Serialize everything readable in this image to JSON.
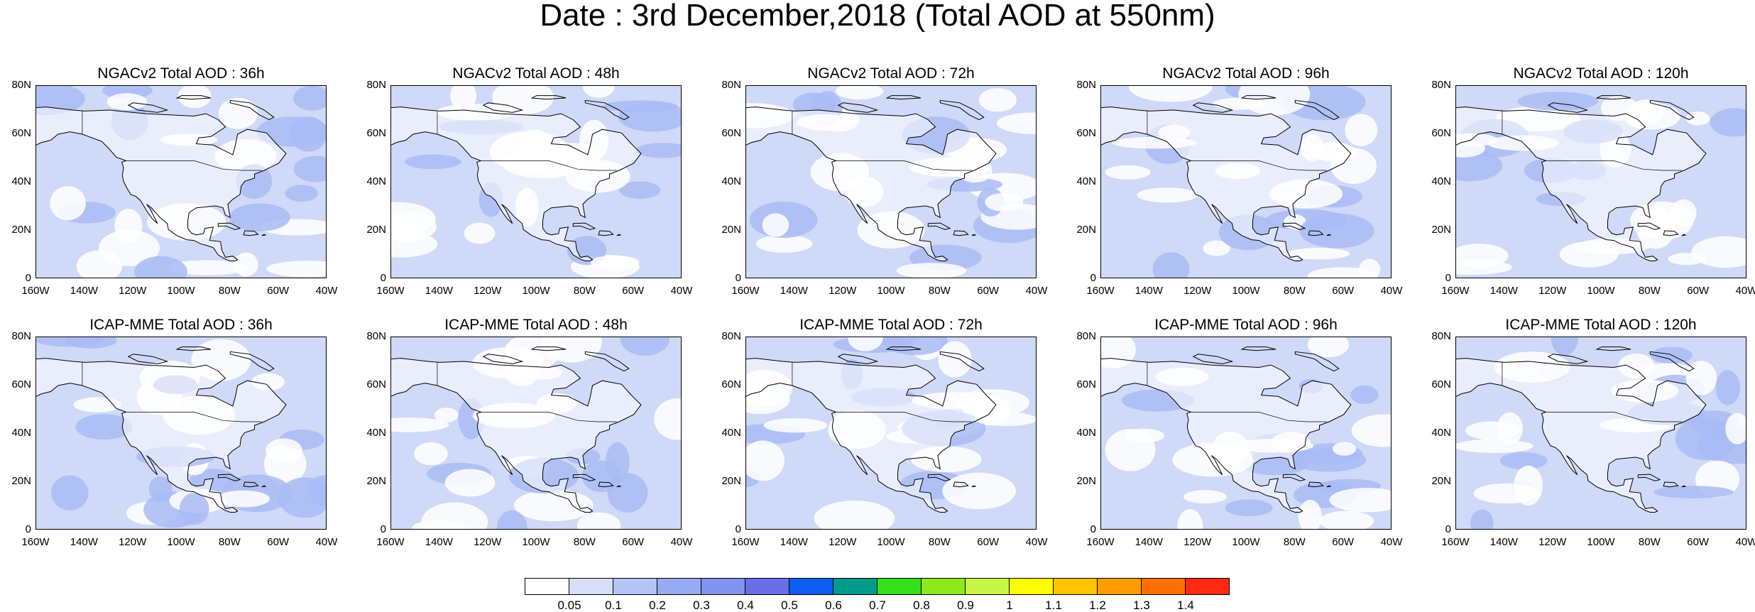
{
  "title": "Date : 3rd December,2018 (Total AOD at 550nm)",
  "panels": [
    {
      "title": "NGACv2 Total AOD : 36h",
      "row": 0,
      "col": 0
    },
    {
      "title": "NGACv2 Total AOD : 48h",
      "row": 0,
      "col": 1
    },
    {
      "title": "NGACv2 Total AOD : 72h",
      "row": 0,
      "col": 2
    },
    {
      "title": "NGACv2 Total AOD : 96h",
      "row": 0,
      "col": 3
    },
    {
      "title": "NGACv2 Total AOD : 120h",
      "row": 0,
      "col": 4
    },
    {
      "title": "ICAP-MME Total AOD : 36h",
      "row": 1,
      "col": 0
    },
    {
      "title": "ICAP-MME Total AOD : 48h",
      "row": 1,
      "col": 1
    },
    {
      "title": "ICAP-MME Total AOD : 72h",
      "row": 1,
      "col": 2
    },
    {
      "title": "ICAP-MME Total AOD : 96h",
      "row": 1,
      "col": 3
    },
    {
      "title": "ICAP-MME Total AOD : 120h",
      "row": 1,
      "col": 4
    }
  ],
  "lat_ticks": [
    "80N",
    "60N",
    "40N",
    "20N",
    "0"
  ],
  "lon_ticks": [
    "160W",
    "140W",
    "120W",
    "100W",
    "80W",
    "60W",
    "40W"
  ],
  "colorbar": {
    "colors": [
      "#ffffff",
      "#d6defa",
      "#b4c4f6",
      "#96abf2",
      "#7f93ef",
      "#6a6de8",
      "#0f5cf0",
      "#009a8c",
      "#33e01a",
      "#8fe81c",
      "#c6f545",
      "#ffff00",
      "#ffc400",
      "#ff9d00",
      "#ff7000",
      "#ff2a0f"
    ],
    "labels": [
      "0.05",
      "0.1",
      "0.2",
      "0.3",
      "0.4",
      "0.5",
      "0.6",
      "0.7",
      "0.8",
      "0.9",
      "1",
      "1.1",
      "1.2",
      "1.3",
      "1.4"
    ]
  },
  "map_fill": "#cfd9f8",
  "light_fill": "#ffffff",
  "darker_fill": "#a9bbf4"
}
